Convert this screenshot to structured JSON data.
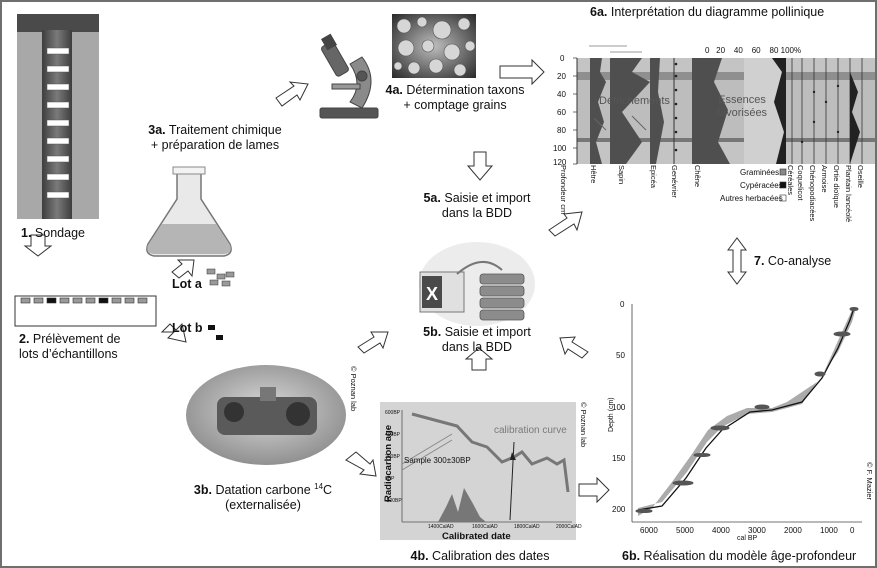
{
  "steps": {
    "s1": {
      "num": "1.",
      "text": "Sondage"
    },
    "s2": {
      "num": "2.",
      "line1": "Prélèvement de",
      "line2": "lots d’échantillons"
    },
    "s3a": {
      "num": "3a.",
      "line1": "Traitement chimique",
      "line2": "+ préparation de lames"
    },
    "s3b": {
      "num": "3b.",
      "line1": "Datation carbone ",
      "sup": "14",
      "tail": "C",
      "line2": "(externalisée)"
    },
    "s4a": {
      "num": "4a.",
      "line1": "Détermination taxons",
      "line2": "+ comptage grains"
    },
    "s4b": {
      "num": "4b.",
      "text": "Calibration des dates"
    },
    "s5a": {
      "num": "5a.",
      "line1": "Saisie et import",
      "line2": "dans la BDD"
    },
    "s5b": {
      "num": "5b.",
      "line1": "Saisie et import",
      "line2": "dans la BDD"
    },
    "s6a": {
      "num": "6a.",
      "text": "Interprétation du diagramme pollinique"
    },
    "s6b": {
      "num": "6b.",
      "text": "Réalisation du modèle âge-profondeur"
    },
    "s7": {
      "num": "7.",
      "text": "Co-analyse"
    }
  },
  "lots": {
    "a": "Lot a",
    "b": "Lot b"
  },
  "credits": {
    "poznan1": "© Poznan lab",
    "poznan2": "© Poznan lab",
    "mazier": "© F. Mazier"
  },
  "pollen": {
    "scale": [
      "0",
      "20",
      "40",
      "60",
      "80",
      "100%"
    ],
    "depths": [
      "0",
      "20",
      "40",
      "60",
      "80",
      "100",
      "120"
    ],
    "band1": "Défrichements",
    "band2a": "Essences",
    "band2b": "favorisées",
    "taxa": [
      "Profondeur cm",
      "Hêtre",
      "Sapin",
      "Epicéa",
      "Genévrier",
      "Chêne",
      "Céréales",
      "Coquelicot",
      "Chénopodiacées",
      "Armoise",
      "Ortie dioïque",
      "Plantain lancéolé",
      "Oseille"
    ],
    "legend": [
      "Graminées",
      "Cypéracées",
      "Autres herbacées"
    ]
  },
  "calib": {
    "ylabel": "Radiocarbon age",
    "xlabel": "Calibrated date",
    "yticks": [
      "600BP",
      "400BP",
      "200BP",
      "0BP",
      "-200BP"
    ],
    "xticks": [
      "1400CalAD",
      "1600CalAD",
      "1800CalAD",
      "2000CalAD"
    ],
    "curve_label": "calibration curve",
    "sample_label": "Sample 300±30BP"
  },
  "agedepth": {
    "ylabel": "Depth (cm)",
    "xlabel": "cal BP",
    "yticks": [
      "0",
      "50",
      "100",
      "150",
      "200"
    ],
    "xticks": [
      "6000",
      "5000",
      "4000",
      "3000",
      "2000",
      "1000",
      "0"
    ]
  },
  "colors": {
    "arrow": "#ffffff",
    "stroke": "#333333",
    "grey": "#9a9a9a",
    "dark": "#3a3a3a"
  }
}
